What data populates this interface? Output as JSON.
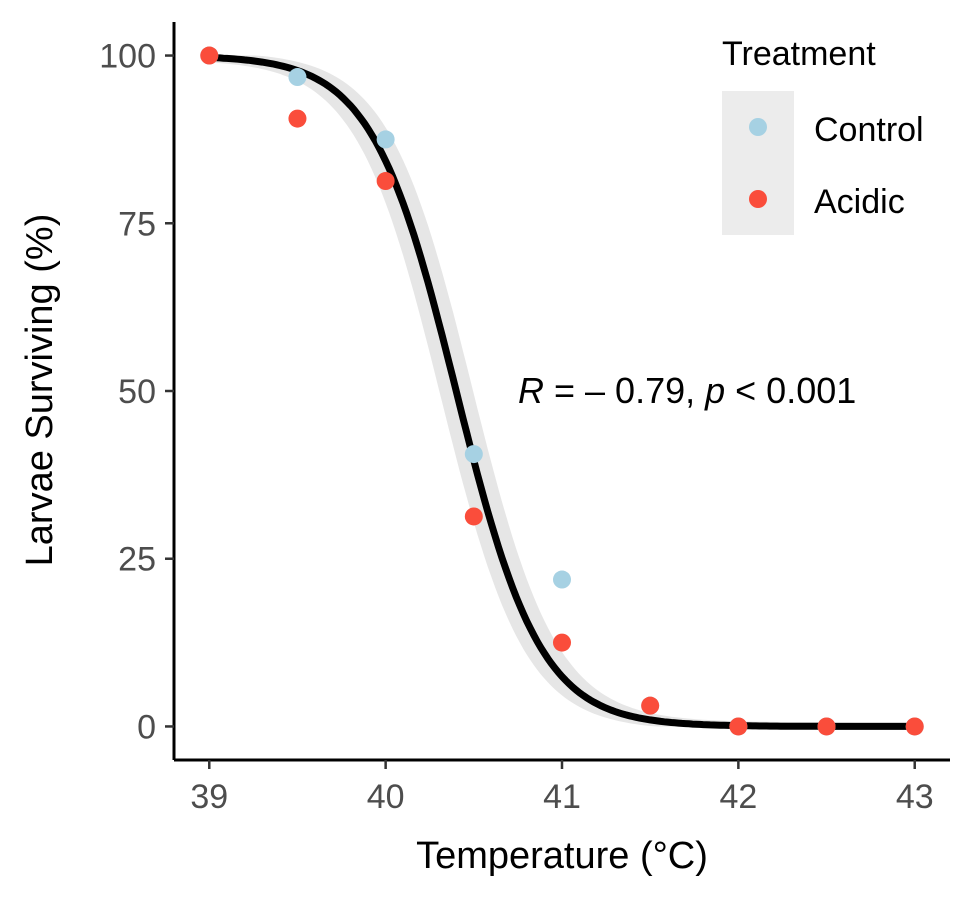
{
  "chart_data": {
    "type": "scatter",
    "xlabel": "Temperature (°C)",
    "ylabel": "Larvae Surviving (%)",
    "xlim": [
      38.8,
      43.2
    ],
    "ylim": [
      -5,
      105
    ],
    "x_ticks": [
      "39",
      "40",
      "41",
      "42",
      "43"
    ],
    "y_ticks": [
      "0",
      "25",
      "50",
      "75",
      "100"
    ],
    "grid": false,
    "legend": {
      "title": "Treatment",
      "placement": "top-right",
      "entries": [
        "Control",
        "Acidic"
      ]
    },
    "series": [
      {
        "name": "Control",
        "color": "#a6d1e3",
        "x": [
          39.0,
          39.5,
          40.0,
          40.5,
          41.0,
          41.5,
          42.0,
          42.5,
          43.0
        ],
        "y": [
          100,
          96.8,
          87.5,
          40.6,
          21.9,
          3.1,
          0,
          0,
          0
        ]
      },
      {
        "name": "Acidic",
        "color": "#fa4d3b",
        "x": [
          39.0,
          39.5,
          40.0,
          40.5,
          41.0,
          41.5,
          42.0,
          42.5,
          43.0
        ],
        "y": [
          100,
          90.6,
          81.3,
          31.3,
          12.5,
          3.1,
          0,
          0,
          0
        ]
      }
    ],
    "fit": {
      "type": "logistic",
      "color": "#000000",
      "band_color": "#e6e6e6",
      "midpoint": 40.4,
      "slope": -4.2
    },
    "annotation": {
      "r_symbol": "R",
      "r_text": " = – 0.79, ",
      "p_symbol": "p",
      "p_text": " < 0.001"
    }
  }
}
